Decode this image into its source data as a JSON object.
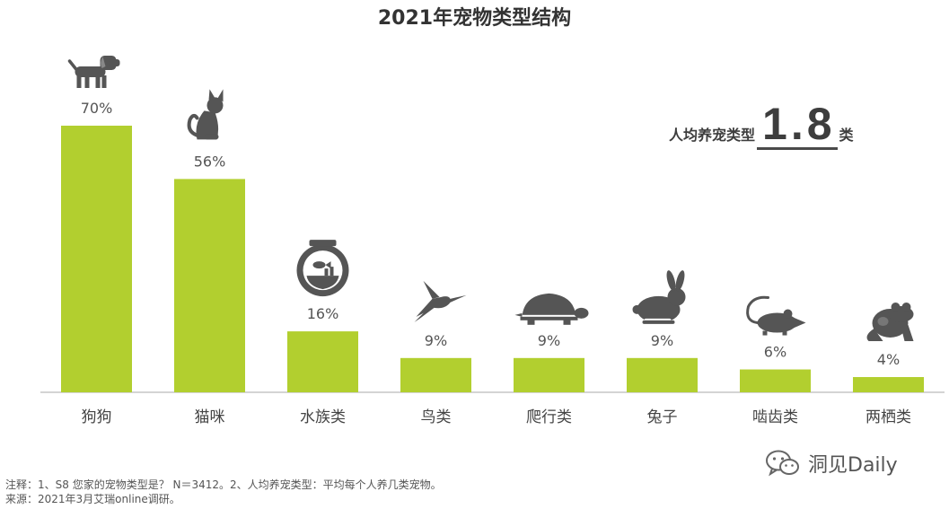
{
  "title": "2021年宠物类型结构",
  "summary": {
    "label": "人均养宠类型",
    "value": "1.8",
    "unit": "类"
  },
  "chart_data": {
    "type": "bar",
    "categories": [
      "狗狗",
      "猫咪",
      "水族类",
      "鸟类",
      "爬行类",
      "兔子",
      "啮齿类",
      "两栖类"
    ],
    "values": [
      70,
      56,
      16,
      9,
      9,
      9,
      6,
      4
    ],
    "value_labels": [
      "70%",
      "56%",
      "16%",
      "9%",
      "9%",
      "9%",
      "6%",
      "4%"
    ],
    "icons": [
      "dog-icon",
      "cat-icon",
      "fishbowl-icon",
      "bird-icon",
      "turtle-icon",
      "rabbit-icon",
      "rat-icon",
      "frog-icon"
    ],
    "ylim": [
      0,
      70
    ],
    "bar_color": "#b2cf2f",
    "icon_color": "#555555",
    "grid": false
  },
  "footnote": {
    "line1": "注释：1、S8 您家的宠物类型是？ N＝3412。2、人均养宠类型：平均每个人养几类宠物。",
    "line2": "来源：2021年3月艾瑞online调研。"
  },
  "brand": {
    "name": "洞见Daily",
    "logo_icon": "wechat-icon"
  }
}
